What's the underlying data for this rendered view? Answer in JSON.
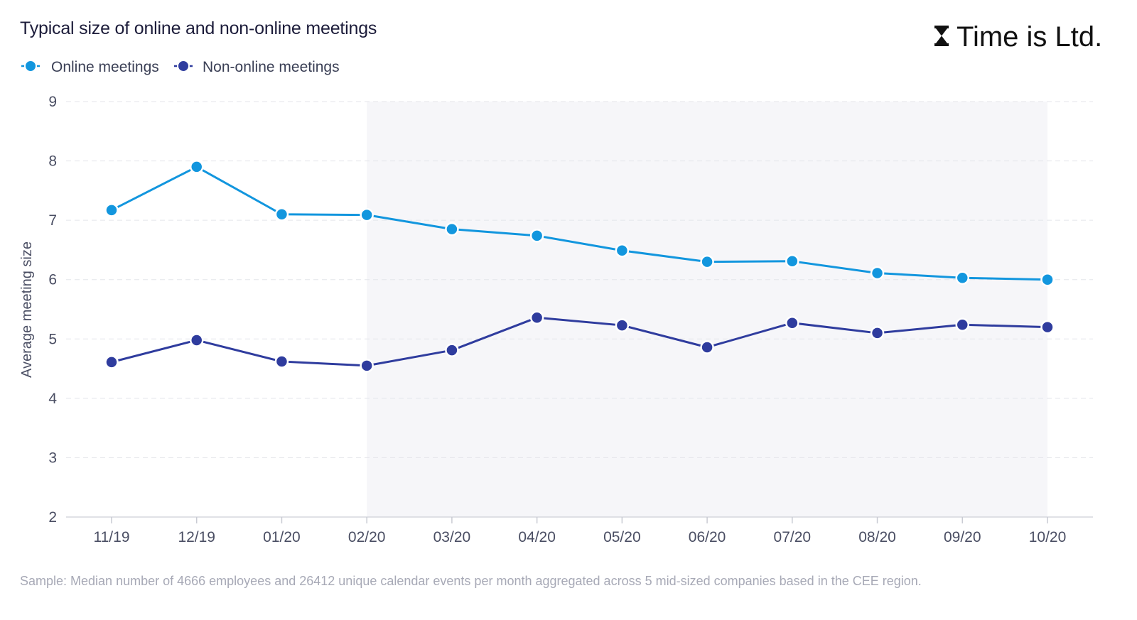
{
  "brand": {
    "name": "Time is Ltd."
  },
  "footnote": "Sample: Median number of 4666 employees and 26412 unique calendar events per month aggregated across 5 mid-sized companies based in the CEE region.",
  "colors": {
    "online": "#1296de",
    "non_online": "#2f3c9e",
    "shaded_region": "#f6f6f9"
  },
  "chart_data": {
    "type": "line",
    "title": "Typical size of online and non-online meetings",
    "xlabel": "",
    "ylabel": "Average meeting size",
    "categories": [
      "11/19",
      "12/19",
      "01/20",
      "02/20",
      "03/20",
      "04/20",
      "05/20",
      "06/20",
      "07/20",
      "08/20",
      "09/20",
      "10/20"
    ],
    "ylim": [
      2,
      9
    ],
    "yticks": [
      2,
      3,
      4,
      5,
      6,
      7,
      8,
      9
    ],
    "grid": true,
    "legend_position": "top-left",
    "shaded_range": [
      "02/20",
      "10/20"
    ],
    "series": [
      {
        "name": "Online meetings",
        "color": "#1296de",
        "values": [
          7.17,
          7.9,
          7.1,
          7.09,
          6.85,
          6.74,
          6.49,
          6.3,
          6.31,
          6.11,
          6.03,
          6.0
        ]
      },
      {
        "name": "Non-online meetings",
        "color": "#2f3c9e",
        "values": [
          4.61,
          4.98,
          4.62,
          4.55,
          4.81,
          5.36,
          5.23,
          4.86,
          5.27,
          5.1,
          5.24,
          5.2
        ]
      }
    ]
  }
}
